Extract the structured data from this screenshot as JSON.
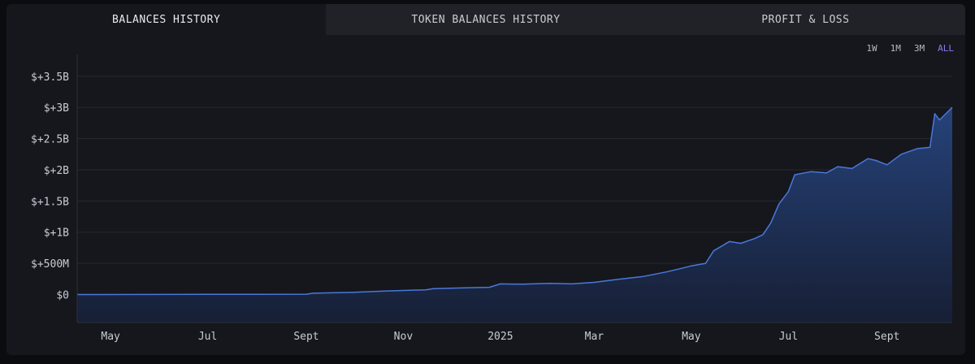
{
  "tabs": [
    {
      "label": "BALANCES HISTORY",
      "active": true
    },
    {
      "label": "TOKEN BALANCES HISTORY",
      "active": false
    },
    {
      "label": "PROFIT & LOSS",
      "active": false
    }
  ],
  "ranges": [
    {
      "label": "1W",
      "active": false
    },
    {
      "label": "1M",
      "active": false
    },
    {
      "label": "3M",
      "active": false
    },
    {
      "label": "ALL",
      "active": true
    }
  ],
  "colors": {
    "line": "#4a78d8",
    "fill_top": "#27457f",
    "fill_bottom": "#172038",
    "grid": "#262933",
    "axis": "#2d3039",
    "accent": "#8a7cf0"
  },
  "chart_data": {
    "type": "area",
    "title": "",
    "xlabel": "",
    "ylabel": "",
    "grid": true,
    "legend": "none",
    "xlim": [
      "2024-04-10",
      "2025-10-12"
    ],
    "ylim": [
      -450000000,
      3850000000
    ],
    "yticks": [
      {
        "value": 0,
        "label": "$0"
      },
      {
        "value": 500000000,
        "label": "$+500M"
      },
      {
        "value": 1000000000,
        "label": "$+1B"
      },
      {
        "value": 1500000000,
        "label": "$+1.5B"
      },
      {
        "value": 2000000000,
        "label": "$+2B"
      },
      {
        "value": 2500000000,
        "label": "$+2.5B"
      },
      {
        "value": 3000000000,
        "label": "$+3B"
      },
      {
        "value": 3500000000,
        "label": "$+3.5B"
      }
    ],
    "xticks": [
      {
        "date": "2024-05-01",
        "label": "May"
      },
      {
        "date": "2024-07-01",
        "label": "Jul"
      },
      {
        "date": "2024-09-01",
        "label": "Sept"
      },
      {
        "date": "2024-11-01",
        "label": "Nov"
      },
      {
        "date": "2025-01-01",
        "label": "2025"
      },
      {
        "date": "2025-03-01",
        "label": "Mar"
      },
      {
        "date": "2025-05-01",
        "label": "May"
      },
      {
        "date": "2025-07-01",
        "label": "Jul"
      },
      {
        "date": "2025-09-01",
        "label": "Sept"
      }
    ],
    "series": [
      {
        "points": [
          [
            "2024-04-10",
            0
          ],
          [
            "2024-06-01",
            1000000
          ],
          [
            "2024-08-01",
            3000000
          ],
          [
            "2024-09-01",
            5000000
          ],
          [
            "2024-09-05",
            20000000
          ],
          [
            "2024-10-01",
            35000000
          ],
          [
            "2024-10-20",
            55000000
          ],
          [
            "2024-11-15",
            75000000
          ],
          [
            "2024-11-20",
            95000000
          ],
          [
            "2024-12-15",
            110000000
          ],
          [
            "2024-12-25",
            115000000
          ],
          [
            "2025-01-01",
            170000000
          ],
          [
            "2025-01-15",
            165000000
          ],
          [
            "2025-02-01",
            180000000
          ],
          [
            "2025-02-15",
            170000000
          ],
          [
            "2025-03-01",
            195000000
          ],
          [
            "2025-03-15",
            240000000
          ],
          [
            "2025-04-01",
            290000000
          ],
          [
            "2025-04-15",
            360000000
          ],
          [
            "2025-04-25",
            420000000
          ],
          [
            "2025-05-01",
            460000000
          ],
          [
            "2025-05-10",
            500000000
          ],
          [
            "2025-05-15",
            700000000
          ],
          [
            "2025-05-25",
            850000000
          ],
          [
            "2025-06-01",
            820000000
          ],
          [
            "2025-06-10",
            900000000
          ],
          [
            "2025-06-15",
            960000000
          ],
          [
            "2025-06-20",
            1150000000
          ],
          [
            "2025-06-25",
            1450000000
          ],
          [
            "2025-07-01",
            1650000000
          ],
          [
            "2025-07-05",
            1920000000
          ],
          [
            "2025-07-15",
            1970000000
          ],
          [
            "2025-07-25",
            1950000000
          ],
          [
            "2025-08-01",
            2050000000
          ],
          [
            "2025-08-10",
            2020000000
          ],
          [
            "2025-08-20",
            2180000000
          ],
          [
            "2025-08-25",
            2150000000
          ],
          [
            "2025-09-01",
            2080000000
          ],
          [
            "2025-09-10",
            2250000000
          ],
          [
            "2025-09-20",
            2340000000
          ],
          [
            "2025-09-28",
            2360000000
          ],
          [
            "2025-10-01",
            2900000000
          ],
          [
            "2025-10-04",
            2800000000
          ],
          [
            "2025-10-08",
            2900000000
          ],
          [
            "2025-10-12",
            3000000000
          ]
        ]
      }
    ]
  }
}
